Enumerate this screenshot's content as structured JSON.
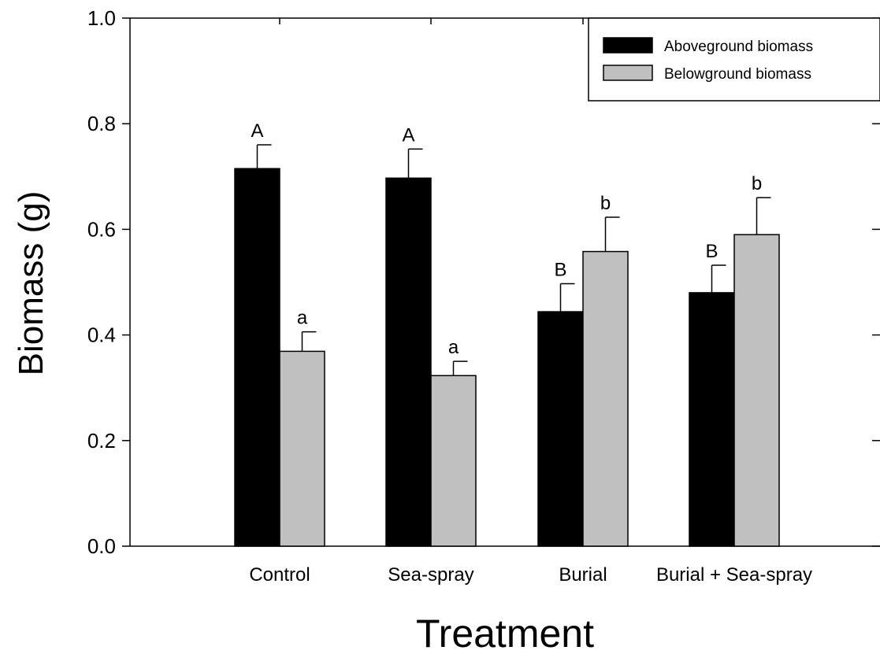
{
  "chart_data": {
    "type": "bar",
    "xlabel": "Treatment",
    "ylabel": "Biomass (g)",
    "ylim": [
      0,
      1.0
    ],
    "yticks": [
      "0.0",
      "0.2",
      "0.4",
      "0.6",
      "0.8",
      "1.0"
    ],
    "categories": [
      "Control",
      "Sea-spray",
      "Burial",
      "Burial + Sea-spray"
    ],
    "series": [
      {
        "name": "Aboveground biomass",
        "color": "#000000",
        "values": [
          0.715,
          0.697,
          0.444,
          0.48
        ],
        "errors": [
          0.045,
          0.055,
          0.053,
          0.052
        ],
        "labels": [
          "A",
          "A",
          "B",
          "B"
        ]
      },
      {
        "name": "Belowground biomass",
        "color": "#c0c0c0",
        "values": [
          0.369,
          0.323,
          0.558,
          0.59
        ],
        "errors": [
          0.037,
          0.027,
          0.065,
          0.07
        ],
        "labels": [
          "a",
          "a",
          "b",
          "b"
        ]
      }
    ],
    "legend_position": "top-right",
    "grid": false
  }
}
